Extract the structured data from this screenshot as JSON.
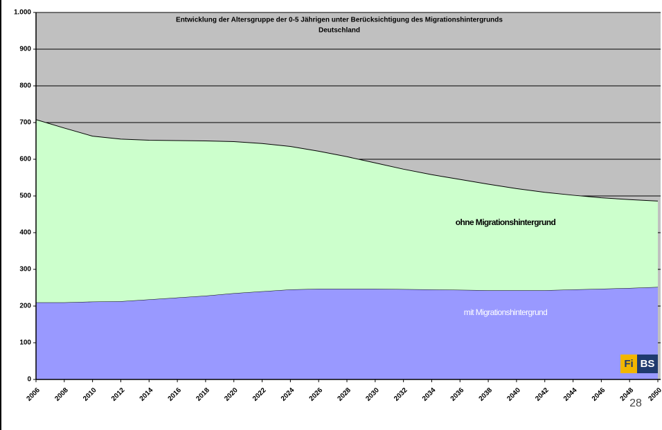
{
  "chart_data": {
    "type": "stacked_area",
    "title": "Entwicklung der Altersgruppe der 0-5 Jährigen unter Berücksichtigung des Migrationshintergrunds",
    "subtitle": "Deutschland",
    "categories": [
      "2006",
      "2008",
      "2010",
      "2012",
      "2014",
      "2016",
      "2018",
      "2020",
      "2022",
      "2024",
      "2026",
      "2028",
      "2030",
      "2032",
      "2034",
      "2036",
      "2038",
      "2040",
      "2042",
      "2044",
      "2046",
      "2048",
      "2050"
    ],
    "series": [
      {
        "name": "mit Migrationshintergrund",
        "color": "#9999ff",
        "values": [
          210,
          210,
          212,
          213,
          218,
          223,
          228,
          235,
          240,
          245,
          247,
          247,
          247,
          246,
          245,
          244,
          243,
          243,
          243,
          245,
          247,
          249,
          252
        ]
      },
      {
        "name": "ohne Migrationshintergrund",
        "color": "#ccffcc",
        "values": [
          498,
          475,
          451,
          442,
          434,
          428,
          422,
          413,
          403,
          390,
          375,
          360,
          343,
          327,
          313,
          301,
          289,
          277,
          267,
          257,
          248,
          241,
          234
        ]
      }
    ],
    "ylim": [
      0,
      1000
    ],
    "yticks": [
      0,
      100,
      200,
      300,
      400,
      500,
      600,
      700,
      800,
      900,
      {
        "value": 1000,
        "label": "1.000"
      }
    ],
    "grid": true,
    "background": "#c0c0c0"
  },
  "logo": {
    "left": "Fi",
    "right": "BS"
  },
  "page_number": "28"
}
